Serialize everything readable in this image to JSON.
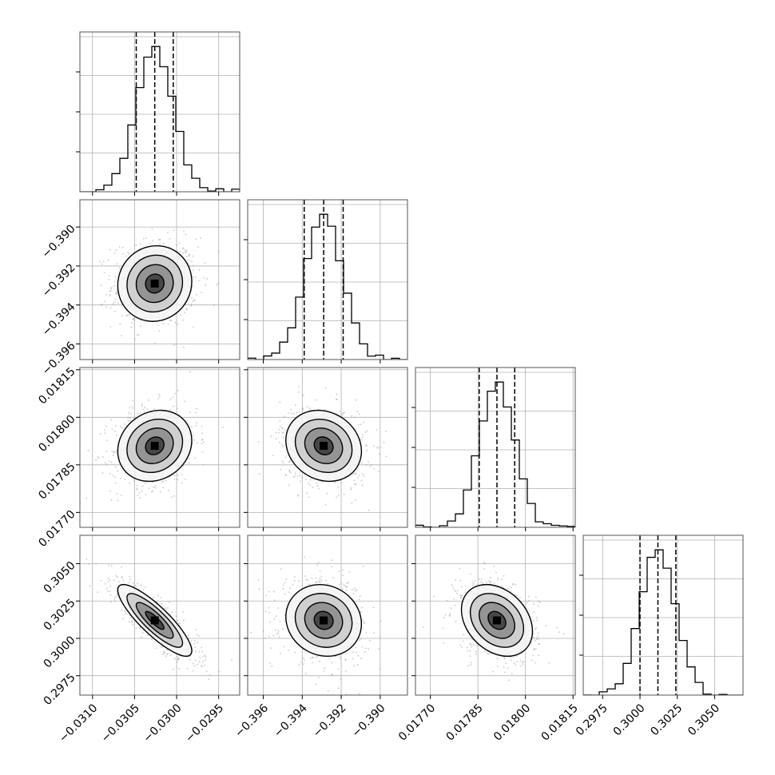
{
  "chart_data": {
    "type": "corner",
    "n_params": 4,
    "grid": true,
    "colors": {
      "line": "#000000",
      "grid": "#b0b0b0",
      "background": "#ffffff",
      "scatter": "#9a9a9a"
    },
    "params": [
      {
        "index": 0,
        "range": [
          -0.03115,
          -0.02925
        ],
        "ticks": [
          -0.031,
          -0.0305,
          -0.03,
          -0.0295
        ],
        "tick_labels": [
          "−0.0310",
          "−0.0305",
          "−0.0300",
          "−0.0295"
        ],
        "mean": -0.03026,
        "sigma": 0.00022,
        "quantiles": [
          -0.03048,
          -0.03026,
          -0.03004
        ]
      },
      {
        "index": 1,
        "range": [
          -0.3968,
          -0.3886
        ],
        "ticks": [
          -0.396,
          -0.394,
          -0.392,
          -0.39
        ],
        "tick_labels": [
          "−0.396",
          "−0.394",
          "−0.392",
          "−0.390"
        ],
        "mean": -0.3929,
        "sigma": 0.00097,
        "quantiles": [
          -0.3939,
          -0.3929,
          -0.3919
        ]
      },
      {
        "index": 2,
        "range": [
          0.017653,
          0.018157
        ],
        "ticks": [
          0.0177,
          0.01785,
          0.018,
          0.01815
        ],
        "tick_labels": [
          "0.01770",
          "0.01785",
          "0.01800",
          "0.01815"
        ],
        "mean": 0.01791,
        "sigma": 5.6e-05,
        "quantiles": [
          0.017854,
          0.01791,
          0.017966
        ]
      },
      {
        "index": 3,
        "range": [
          0.2962,
          0.3069
        ],
        "ticks": [
          0.2975,
          0.3,
          0.3025,
          0.305
        ],
        "tick_labels": [
          "0.2975",
          "0.3000",
          "0.3025",
          "0.3050"
        ],
        "mean": 0.3012,
        "sigma": 0.0012,
        "quantiles": [
          0.3,
          0.3012,
          0.3024
        ]
      }
    ],
    "correlations": [
      {
        "pair": [
          0,
          1
        ],
        "rho": 0.05
      },
      {
        "pair": [
          0,
          2
        ],
        "rho": 0.15
      },
      {
        "pair": [
          1,
          2
        ],
        "rho": -0.15
      },
      {
        "pair": [
          0,
          3
        ],
        "rho": -0.85
      },
      {
        "pair": [
          1,
          3
        ],
        "rho": -0.1
      },
      {
        "pair": [
          2,
          3
        ],
        "rho": -0.3
      }
    ]
  }
}
